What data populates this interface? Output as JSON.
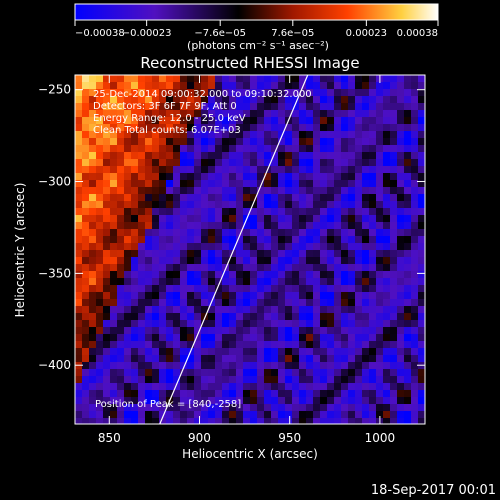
{
  "chart_data": {
    "type": "heatmap",
    "title": "Reconstructed RHESSI Image",
    "xlabel": "Heliocentric X (arcsec)",
    "ylabel": "Heliocentric Y (arcsec)",
    "xlim": [
      831,
      1025
    ],
    "ylim": [
      -432,
      -242
    ],
    "x_ticks": [
      850,
      900,
      950,
      1000
    ],
    "y_ticks": [
      -250,
      -300,
      -350,
      -400
    ],
    "x_tick_labels": [
      "850",
      "900",
      "950",
      "1000"
    ],
    "y_tick_labels": [
      "−250",
      "−300",
      "−350",
      "−400"
    ],
    "colorbar": {
      "min": -0.00038,
      "max": 0.00038,
      "ticks": [
        -0.00038,
        -0.00023,
        -7.6e-05,
        7.6e-05,
        0.00023,
        0.00038
      ],
      "tick_labels": [
        "−0.00038",
        "−0.00023",
        "−7.6e−05",
        "7.6e−05",
        "0.00023",
        "0.00038"
      ],
      "unit_label": "(photons cm⁻² s⁻¹ asec⁻²)",
      "colors": [
        "#0000ff",
        "#5010c0",
        "#000000",
        "#a01800",
        "#ff4000",
        "#ffd040",
        "#ffffff"
      ]
    },
    "annotations": [
      "25-Dec-2014 09:00:32.000 to 09:10:32.000",
      "Detectors: 3F 6F 7F 9F, Att 0",
      "Energy Range: 12.0 - 25.0 keV",
      "Clean    Total counts: 6.07E+03"
    ],
    "peak_label": "Position of Peak = [840,-258]",
    "peak": [
      840,
      -258
    ],
    "limb_line": [
      [
        878,
        -432
      ],
      [
        960,
        -242
      ]
    ],
    "grid": false
  },
  "footer": {
    "timestamp": "18-Sep-2017 00:01"
  }
}
